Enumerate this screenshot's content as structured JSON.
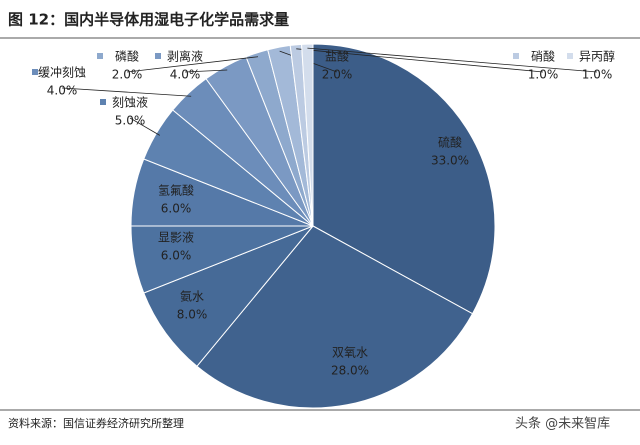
{
  "chart_data": {
    "type": "pie",
    "title": "图 12：国内半导体用湿电子化学品需求量",
    "categories": [
      "硫酸",
      "双氧水",
      "氨水",
      "显影液",
      "氢氟酸",
      "刻蚀液",
      "缓冲刻蚀",
      "剥离液",
      "磷酸",
      "盐酸",
      "硝酸",
      "异丙醇"
    ],
    "values": [
      33,
      28,
      8,
      6,
      6,
      5,
      4,
      4,
      2,
      2,
      1,
      1
    ],
    "value_labels": [
      "33.0%",
      "28.0%",
      "8.0%",
      "6.0%",
      "6.0%",
      "5.0%",
      "4.0%",
      "4.0%",
      "2.0%",
      "2.0%",
      "1.0%",
      "1.0%"
    ],
    "colors": [
      "#3c5d88",
      "#40628e",
      "#466a97",
      "#4d72a0",
      "#5579a8",
      "#5e82b0",
      "#6c8dba",
      "#7b99c3",
      "#8ea9cd",
      "#a3b9d8",
      "#bccbe2",
      "#d3ddec"
    ],
    "source": "资料来源：国信证券经济研究所整理",
    "watermark": "头条 @未来智库"
  }
}
